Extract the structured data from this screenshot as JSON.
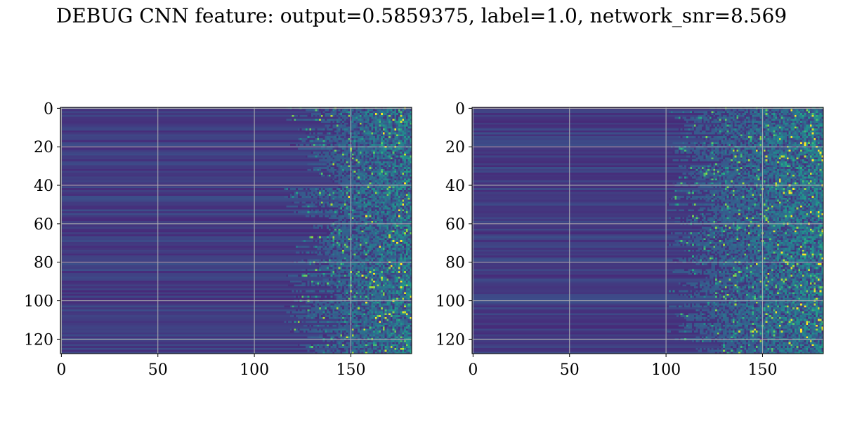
{
  "title": "DEBUG CNN feature: output=0.5859375, label=1.0, network_snr=8.569",
  "colors": {
    "colormap": "viridis",
    "grid": "#b0b0b0",
    "frame": "#000000"
  },
  "chart_data": [
    {
      "type": "heatmap",
      "title": "",
      "xlabel": "",
      "ylabel": "",
      "colormap": "viridis",
      "grid": true,
      "xlim": [
        -0.5,
        181.5
      ],
      "ylim": [
        127.5,
        -0.5
      ],
      "xticks": [
        0,
        50,
        100,
        150
      ],
      "yticks": [
        0,
        20,
        40,
        60,
        80,
        100,
        120
      ],
      "shape": [
        128,
        182
      ],
      "intensity_profile": {
        "background_level": 0.12,
        "active_region_start_x": 130,
        "peak_level": 0.9
      }
    },
    {
      "type": "heatmap",
      "title": "",
      "xlabel": "",
      "ylabel": "",
      "colormap": "viridis",
      "grid": true,
      "xlim": [
        -0.5,
        181.5
      ],
      "ylim": [
        127.5,
        -0.5
      ],
      "xticks": [
        0,
        50,
        100,
        150
      ],
      "yticks": [
        0,
        20,
        40,
        60,
        80,
        100,
        120
      ],
      "shape": [
        128,
        182
      ],
      "intensity_profile": {
        "background_level": 0.12,
        "active_region_start_x": 115,
        "peak_level": 0.85
      }
    }
  ]
}
